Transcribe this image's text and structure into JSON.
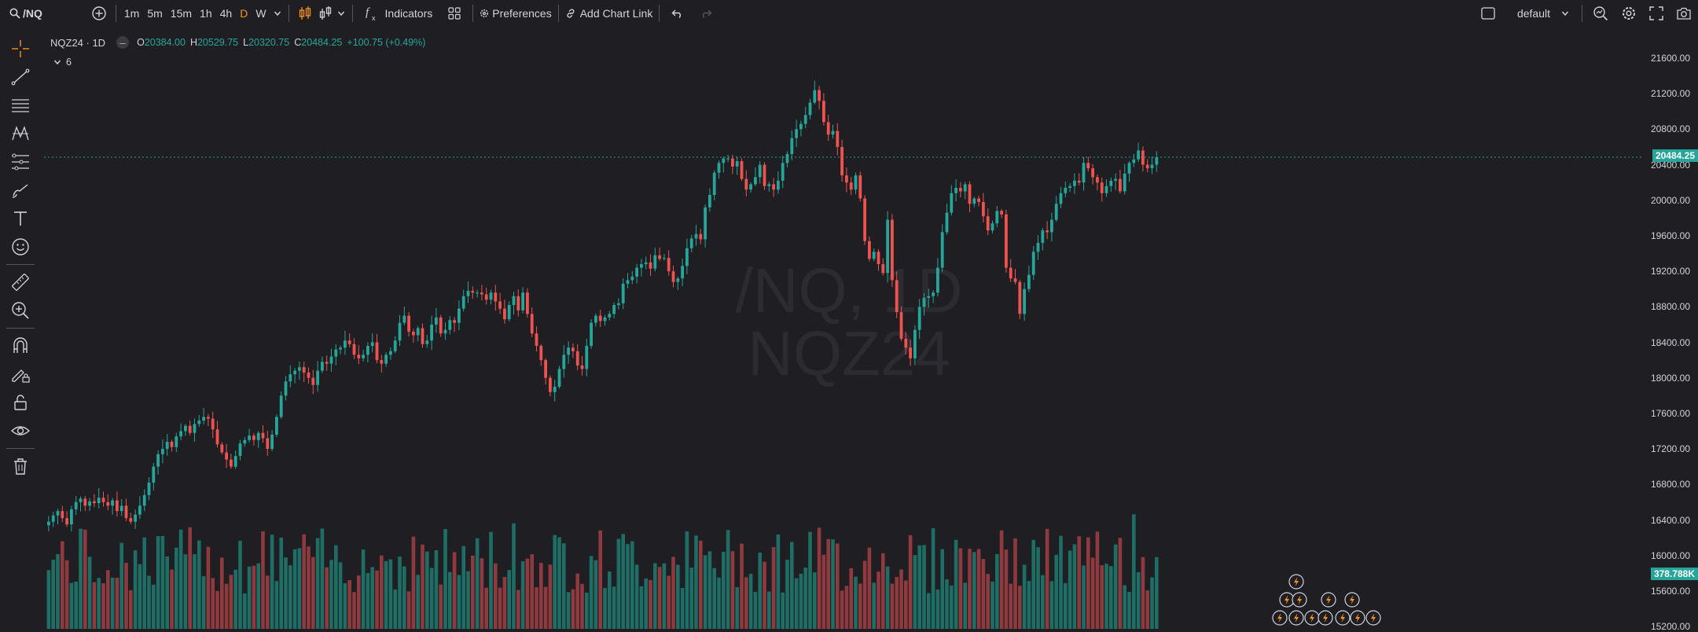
{
  "toolbar": {
    "symbol": "/NQ",
    "intervals": [
      "1m",
      "5m",
      "15m",
      "1h",
      "4h",
      "D",
      "W"
    ],
    "active_interval": "D",
    "indicators_label": "Indicators",
    "preferences_label": "Preferences",
    "chart_link_label": "Add Chart Link",
    "layout_name": "default"
  },
  "legend": {
    "title": "NQZ24 · 1D",
    "open_key": "O",
    "open": "20384.00",
    "high_key": "H",
    "high": "20529.75",
    "low_key": "L",
    "low": "20320.75",
    "close_key": "C",
    "close": "20484.25",
    "change": "+100.75 (+0.49%)",
    "indicator_count": "6"
  },
  "watermark": {
    "line1": "/NQ, 1D",
    "line2": "NQZ24"
  },
  "price_axis": {
    "ticks": [
      "21600.00",
      "21200.00",
      "20800.00",
      "20400.00",
      "20000.00",
      "19600.00",
      "19200.00",
      "18800.00",
      "18400.00",
      "18000.00",
      "17600.00",
      "17200.00",
      "16800.00",
      "16400.00",
      "16000.00",
      "15600.00",
      "15200.00"
    ],
    "last_price": "20484.25",
    "volume_label": "378.788K"
  },
  "colors": {
    "up": "#26a69a",
    "down": "#ef5350",
    "vol_up": "#1e6e66",
    "vol_down": "#8f3a3e",
    "bg": "#1f1e23"
  },
  "chart_data": {
    "type": "candlestick",
    "symbol": "NQZ24",
    "timeframe": "1D",
    "closes": [
      16380,
      16450,
      16500,
      16420,
      16350,
      16520,
      16600,
      16640,
      16560,
      16610,
      16590,
      16650,
      16600,
      16560,
      16620,
      16500,
      16560,
      16420,
      16380,
      16460,
      16560,
      16680,
      16820,
      17000,
      17140,
      17200,
      17280,
      17220,
      17340,
      17400,
      17460,
      17380,
      17480,
      17520,
      17560,
      17540,
      17420,
      17250,
      17160,
      17080,
      17000,
      17120,
      17260,
      17300,
      17350,
      17300,
      17380,
      17320,
      17200,
      17360,
      17560,
      17800,
      17960,
      18040,
      18080,
      18120,
      18060,
      18000,
      17920,
      18080,
      18180,
      18160,
      18240,
      18320,
      18340,
      18420,
      18380,
      18260,
      18220,
      18260,
      18360,
      18400,
      18200,
      18160,
      18260,
      18300,
      18420,
      18620,
      18700,
      18520,
      18480,
      18560,
      18380,
      18420,
      18600,
      18680,
      18500,
      18540,
      18650,
      18620,
      18780,
      18920,
      18980,
      18960,
      18960,
      18940,
      18880,
      18960,
      18860,
      18780,
      18660,
      18820,
      18920,
      18760,
      18960,
      18720,
      18500,
      18360,
      18200,
      18000,
      17840,
      17900,
      18100,
      18260,
      18340,
      18300,
      18140,
      18100,
      18360,
      18620,
      18700,
      18640,
      18680,
      18720,
      18820,
      18840,
      19060,
      19100,
      19140,
      19240,
      19280,
      19300,
      19230,
      19380,
      19340,
      19350,
      19200,
      19080,
      19120,
      19260,
      19460,
      19570,
      19620,
      19560,
      19920,
      20060,
      20310,
      20420,
      20470,
      20470,
      20380,
      20440,
      20240,
      20120,
      20180,
      20260,
      20400,
      20160,
      20180,
      20120,
      20220,
      20420,
      20520,
      20700,
      20800,
      20860,
      20960,
      21100,
      21240,
      21120,
      20880,
      20740,
      20780,
      20600,
      20280,
      20200,
      20120,
      20280,
      20020,
      19540,
      19340,
      19420,
      19280,
      19180,
      19780,
      19100,
      18740,
      18440,
      18340,
      18220,
      18540,
      18800,
      18900,
      18920,
      18960,
      19240,
      19640,
      19860,
      20080,
      20140,
      20100,
      20180,
      19960,
      20020,
      19980,
      19820,
      19660,
      19740,
      19880,
      19840,
      19240,
      19120,
      19080,
      18720,
      19000,
      19160,
      19420,
      19520,
      19660,
      19640,
      19780,
      19960,
      20080,
      20140,
      20160,
      20220,
      20200,
      20420,
      20360,
      20260,
      20200,
      20080,
      20160,
      20220,
      20240,
      20100,
      20300,
      20420,
      20460,
      20560,
      20400,
      20360,
      20400,
      20484
    ],
    "price_range": [
      15200,
      21600
    ],
    "volume_label": "378.788K"
  }
}
